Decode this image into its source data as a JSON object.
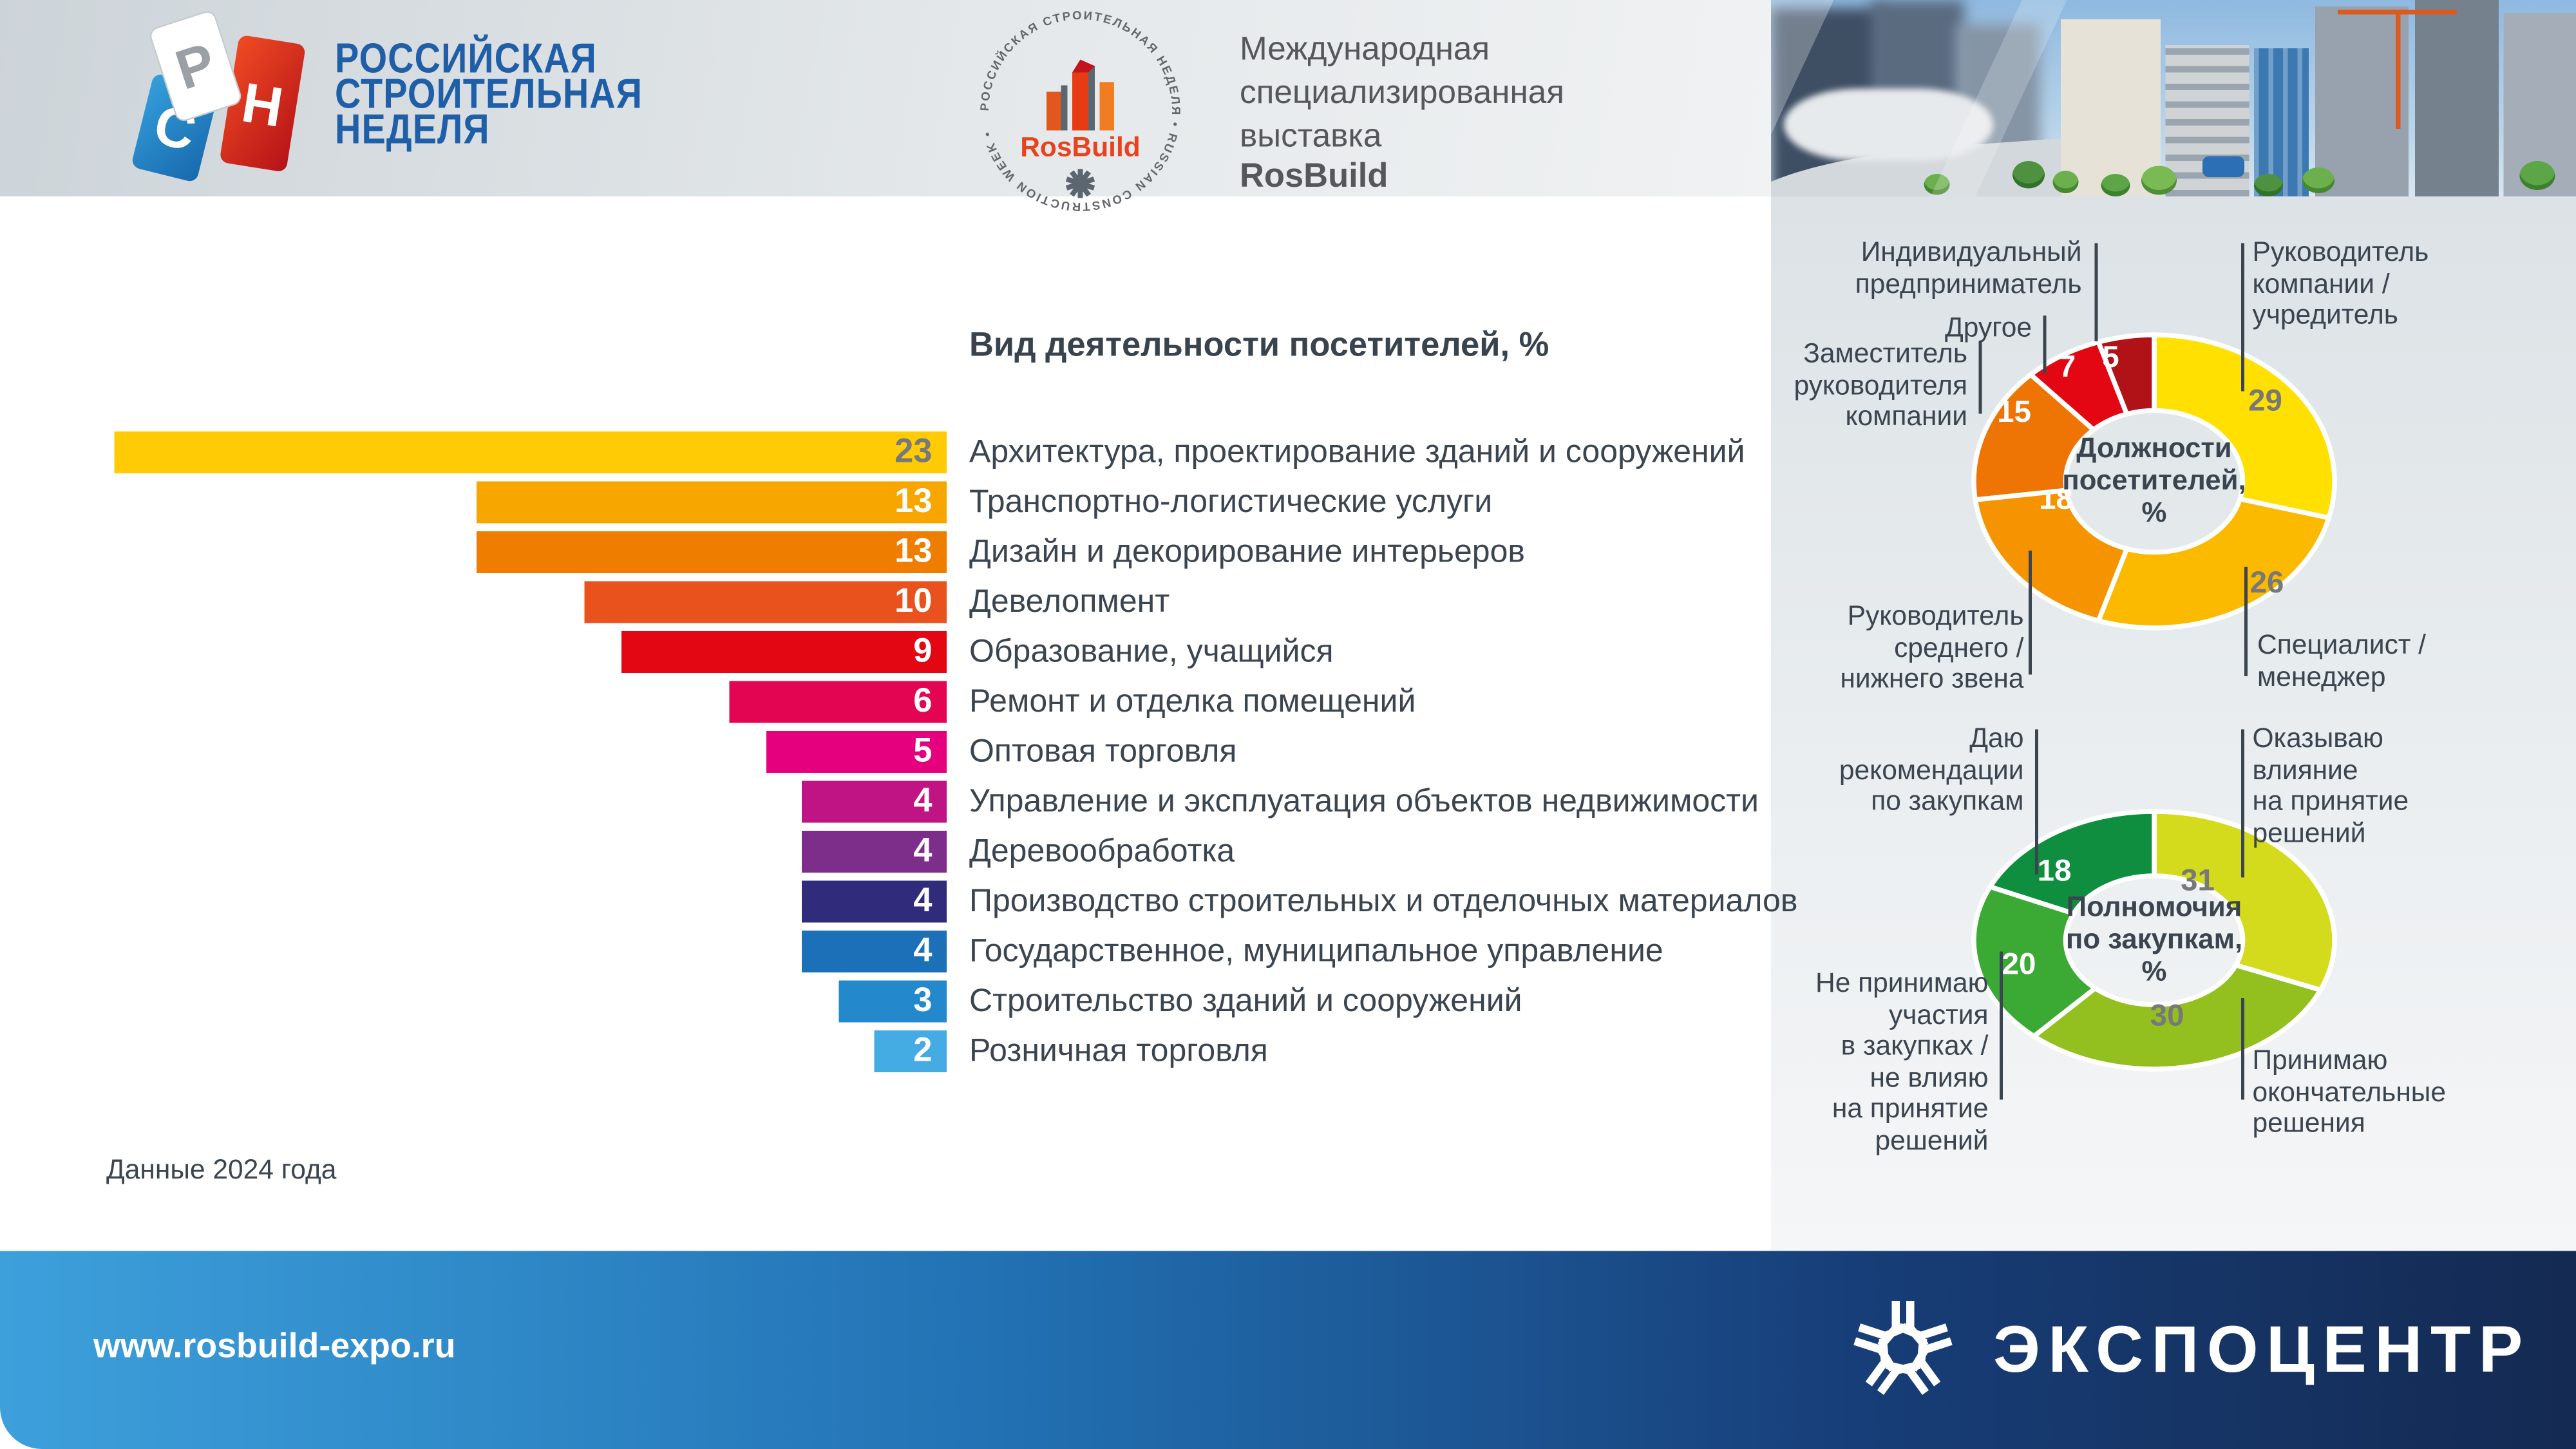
{
  "header": {
    "brand_title": "РОССИЙСКАЯ\nСТРОИТЕЛЬНАЯ\nНЕДЕЛЯ",
    "emblem": {
      "ring_text": "РОССИЙСКАЯ СТРОИТЕЛЬНАЯ НЕДЕЛЯ • RUSSIAN CONSTRUCTION WEEK •",
      "name": "RosBuild"
    },
    "subtitle": "Международная\nспециализированная\nвыставка",
    "subtitle_brand": "RosBuild"
  },
  "note": "Данные 2024 года",
  "footer": {
    "url": "www.rosbuild-expo.ru",
    "brand": "ЭКСПОЦЕНТР"
  },
  "palette": {
    "footer_left": "#3DA0DB",
    "footer_right": "#142A52",
    "brand_blue": "#1E5FA8",
    "logo_red": "#E8431C",
    "text_dark": "#3B4550",
    "number_gray": "#77787B"
  },
  "chart_data": [
    {
      "type": "bar",
      "title": "Вид деятельности посетителей, %",
      "xlim": [
        0,
        23
      ],
      "grid": false,
      "value_labels": "inside-right",
      "categories": [
        "Архитектура, проектирование зданий и сооружений",
        "Транспортно-логистические услуги",
        "Дизайн и декорирование интерьеров",
        "Девелопмент",
        "Образование, учащийся",
        "Ремонт и отделка помещений",
        "Оптовая торговля",
        "Управление и эксплуатация объектов недвижимости",
        "Деревообработка",
        "Производство строительных и отделочных материалов",
        "Государственное, муниципальное управление",
        "Строительство зданий и сооружений",
        "Розничная торговля"
      ],
      "values": [
        23,
        13,
        13,
        10,
        9,
        6,
        5,
        4,
        4,
        4,
        4,
        3,
        2
      ],
      "bar_colors": [
        "#FFCB05",
        "#F7A600",
        "#EF7D00",
        "#E9521D",
        "#E30613",
        "#E30551",
        "#E5007E",
        "#C01484",
        "#7D2E8B",
        "#312B7B",
        "#1C70B7",
        "#2489CC",
        "#45ACE3"
      ],
      "value_text_colors": [
        "#77787B",
        "#FFFFFF",
        "#FFFFFF",
        "#FFFFFF",
        "#FFFFFF",
        "#FFFFFF",
        "#FFFFFF",
        "#FFFFFF",
        "#FFFFFF",
        "#FFFFFF",
        "#FFFFFF",
        "#FFFFFF",
        "#FFFFFF"
      ]
    },
    {
      "type": "donut",
      "center": "Должности\nпосетителей,\n%",
      "legend_position": "around",
      "segments": [
        {
          "label": "Руководитель\nкомпании /\nучредитель",
          "value": 29,
          "color": "#FFE000",
          "number_color": "#77787B"
        },
        {
          "label": "Специалист /\nменеджер",
          "value": 26,
          "color": "#FBB900",
          "number_color": "#77787B"
        },
        {
          "label": "Руководитель\nсреднего /\nнижнего звена",
          "value": 18,
          "color": "#F59300",
          "number_color": "#FFFFFF"
        },
        {
          "label": "Заместитель\nруководителя\nкомпании",
          "value": 15,
          "color": "#EE7504",
          "number_color": "#FFFFFF"
        },
        {
          "label": "Другое",
          "value": 7,
          "color": "#E30613",
          "number_color": "#FFFFFF"
        },
        {
          "label": "Индивидуальный\nпредприниматель",
          "value": 5,
          "color": "#B11217",
          "number_color": "#FFFFFF"
        }
      ]
    },
    {
      "type": "donut",
      "center": "Полномочия\nпо закупкам,\n%",
      "legend_position": "around",
      "segments": [
        {
          "label": "Оказываю\nвлияние\nна принятие\nрешений",
          "value": 31,
          "color": "#D3DB1C",
          "number_color": "#77787B"
        },
        {
          "label": "Принимаю\nокончательные\nрешения",
          "value": 30,
          "color": "#93C01F",
          "number_color": "#77787B"
        },
        {
          "label": "Не принимаю\nучастия\nв закупках /\nне влияю\nна принятие\nрешений",
          "value": 20,
          "color": "#3AAA35",
          "number_color": "#FFFFFF"
        },
        {
          "label": "Даю\nрекомендации\nпо закупкам",
          "value": 18,
          "color": "#0E8E3E",
          "number_color": "#FFFFFF"
        }
      ]
    }
  ]
}
